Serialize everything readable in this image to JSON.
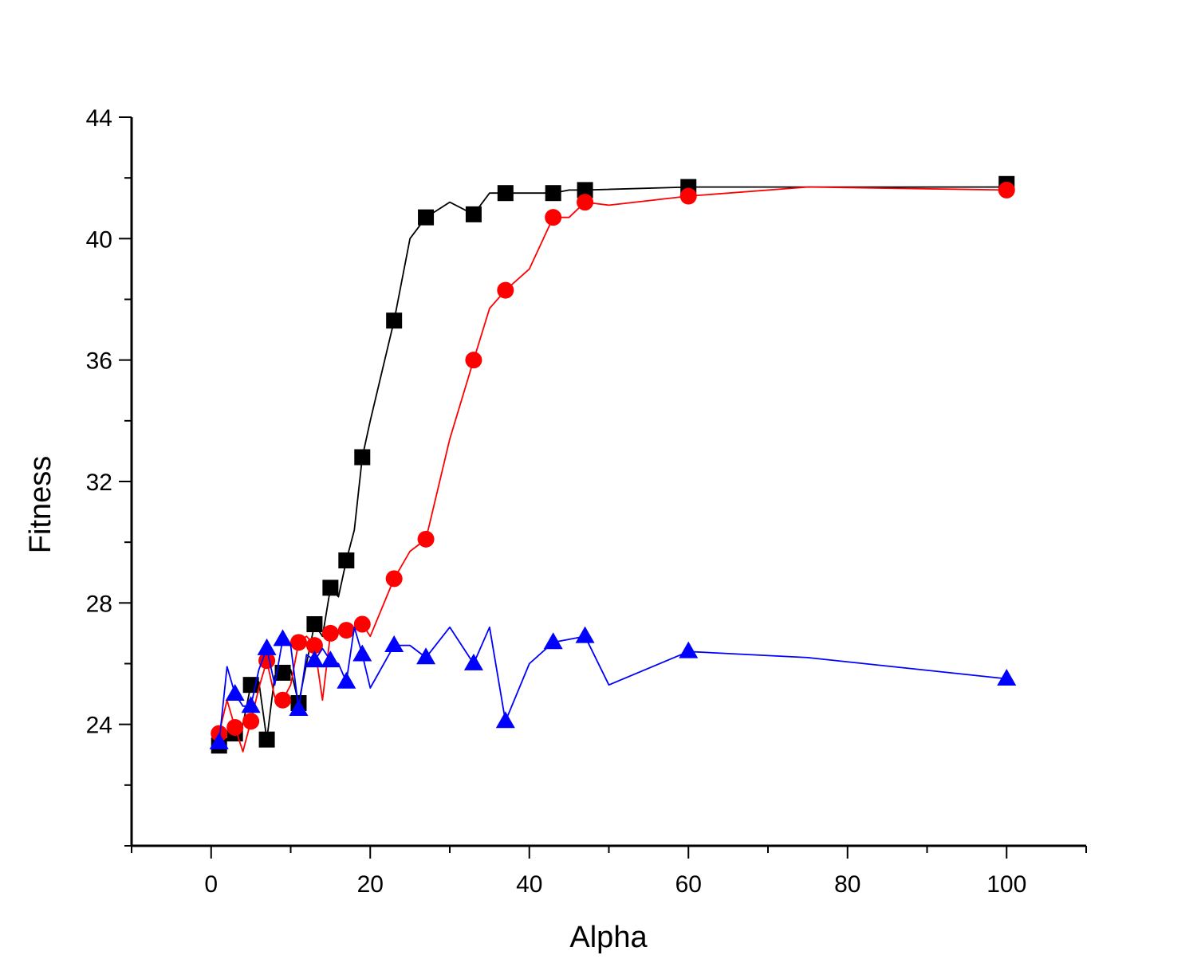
{
  "chart_data": {
    "type": "line",
    "title": "",
    "xlabel": "Alpha",
    "ylabel": "Fitness",
    "xlim": [
      -10,
      110
    ],
    "ylim": [
      20,
      44
    ],
    "x_ticks": [
      0,
      20,
      40,
      60,
      80,
      100
    ],
    "x_tick_labels": [
      "0",
      "20",
      "40",
      "60",
      "80",
      "100"
    ],
    "y_ticks": [
      24,
      28,
      32,
      36,
      40,
      44
    ],
    "y_tick_labels": [
      "24",
      "28",
      "32",
      "36",
      "40",
      "44"
    ],
    "legend": "none",
    "grid": false,
    "series": [
      {
        "name": "square",
        "color": "#000000",
        "marker": "square",
        "line": [
          [
            1,
            23.4
          ],
          [
            2,
            23.5
          ],
          [
            3,
            23.7
          ],
          [
            4,
            24.0
          ],
          [
            5,
            25.3
          ],
          [
            6,
            25.4
          ],
          [
            7,
            23.5
          ],
          [
            8,
            25.6
          ],
          [
            9,
            25.7
          ],
          [
            10,
            25.8
          ],
          [
            11,
            24.7
          ],
          [
            12,
            26.0
          ],
          [
            13,
            27.3
          ],
          [
            14,
            26.9
          ],
          [
            15,
            28.5
          ],
          [
            16,
            28.2
          ],
          [
            17,
            29.4
          ],
          [
            18,
            30.4
          ],
          [
            19,
            32.8
          ],
          [
            20,
            34.0
          ],
          [
            23,
            37.3
          ],
          [
            25,
            40.0
          ],
          [
            27,
            40.7
          ],
          [
            30,
            41.2
          ],
          [
            33,
            40.8
          ],
          [
            35,
            41.5
          ],
          [
            37,
            41.5
          ],
          [
            40,
            41.5
          ],
          [
            43,
            41.5
          ],
          [
            45,
            41.6
          ],
          [
            47,
            41.6
          ],
          [
            60,
            41.7
          ],
          [
            100,
            41.7
          ]
        ],
        "markers": [
          [
            1,
            23.3
          ],
          [
            3,
            23.7
          ],
          [
            5,
            25.3
          ],
          [
            7,
            23.5
          ],
          [
            9,
            25.7
          ],
          [
            11,
            24.7
          ],
          [
            13,
            27.3
          ],
          [
            15,
            28.5
          ],
          [
            17,
            29.4
          ],
          [
            19,
            32.8
          ],
          [
            23,
            37.3
          ],
          [
            27,
            40.7
          ],
          [
            33,
            40.8
          ],
          [
            37,
            41.5
          ],
          [
            43,
            41.5
          ],
          [
            47,
            41.6
          ],
          [
            60,
            41.7
          ],
          [
            100,
            41.8
          ]
        ]
      },
      {
        "name": "circle",
        "color": "#ff0000",
        "marker": "circle",
        "line": [
          [
            1,
            23.7
          ],
          [
            2,
            24.8
          ],
          [
            3,
            23.9
          ],
          [
            4,
            23.1
          ],
          [
            5,
            24.1
          ],
          [
            6,
            25.2
          ],
          [
            7,
            26.1
          ],
          [
            8,
            24.9
          ],
          [
            9,
            24.8
          ],
          [
            10,
            25.3
          ],
          [
            11,
            26.7
          ],
          [
            12,
            26.9
          ],
          [
            13,
            26.6
          ],
          [
            14,
            24.8
          ],
          [
            15,
            27.0
          ],
          [
            16,
            27.0
          ],
          [
            17,
            27.1
          ],
          [
            18,
            27.1
          ],
          [
            19,
            27.3
          ],
          [
            20,
            26.9
          ],
          [
            23,
            28.8
          ],
          [
            25,
            29.7
          ],
          [
            27,
            30.1
          ],
          [
            30,
            33.4
          ],
          [
            33,
            36.0
          ],
          [
            35,
            37.7
          ],
          [
            37,
            38.3
          ],
          [
            40,
            39.0
          ],
          [
            43,
            40.7
          ],
          [
            45,
            40.7
          ],
          [
            47,
            41.2
          ],
          [
            50,
            41.1
          ],
          [
            60,
            41.4
          ],
          [
            75,
            41.7
          ],
          [
            100,
            41.6
          ]
        ],
        "markers": [
          [
            1,
            23.7
          ],
          [
            3,
            23.9
          ],
          [
            5,
            24.1
          ],
          [
            7,
            26.1
          ],
          [
            9,
            24.8
          ],
          [
            11,
            26.7
          ],
          [
            13,
            26.6
          ],
          [
            15,
            27.0
          ],
          [
            17,
            27.1
          ],
          [
            19,
            27.3
          ],
          [
            23,
            28.8
          ],
          [
            27,
            30.1
          ],
          [
            33,
            36.0
          ],
          [
            37,
            38.3
          ],
          [
            43,
            40.7
          ],
          [
            47,
            41.2
          ],
          [
            60,
            41.4
          ],
          [
            100,
            41.6
          ]
        ]
      },
      {
        "name": "triangle",
        "color": "#0000ff",
        "marker": "triangle",
        "line": [
          [
            1,
            23.4
          ],
          [
            2,
            25.9
          ],
          [
            3,
            25.0
          ],
          [
            4,
            24.6
          ],
          [
            5,
            24.6
          ],
          [
            6,
            25.8
          ],
          [
            7,
            26.5
          ],
          [
            8,
            25.3
          ],
          [
            9,
            26.8
          ],
          [
            10,
            26.6
          ],
          [
            11,
            24.5
          ],
          [
            12,
            26.3
          ],
          [
            13,
            26.1
          ],
          [
            14,
            26.5
          ],
          [
            15,
            26.1
          ],
          [
            16,
            26.0
          ],
          [
            17,
            25.4
          ],
          [
            18,
            27.2
          ],
          [
            19,
            26.3
          ],
          [
            20,
            25.2
          ],
          [
            23,
            26.6
          ],
          [
            25,
            26.6
          ],
          [
            27,
            26.2
          ],
          [
            30,
            27.2
          ],
          [
            33,
            26.0
          ],
          [
            35,
            27.2
          ],
          [
            37,
            24.1
          ],
          [
            40,
            26.0
          ],
          [
            43,
            26.7
          ],
          [
            47,
            26.9
          ],
          [
            50,
            25.3
          ],
          [
            60,
            26.4
          ],
          [
            75,
            26.2
          ],
          [
            100,
            25.5
          ]
        ],
        "markers": [
          [
            1,
            23.4
          ],
          [
            3,
            25.0
          ],
          [
            5,
            24.6
          ],
          [
            7,
            26.5
          ],
          [
            9,
            26.8
          ],
          [
            11,
            24.5
          ],
          [
            13,
            26.1
          ],
          [
            15,
            26.1
          ],
          [
            17,
            25.4
          ],
          [
            19,
            26.3
          ],
          [
            23,
            26.6
          ],
          [
            27,
            26.2
          ],
          [
            33,
            26.0
          ],
          [
            37,
            24.1
          ],
          [
            43,
            26.7
          ],
          [
            47,
            26.9
          ],
          [
            60,
            26.4
          ],
          [
            100,
            25.5
          ]
        ]
      }
    ]
  }
}
